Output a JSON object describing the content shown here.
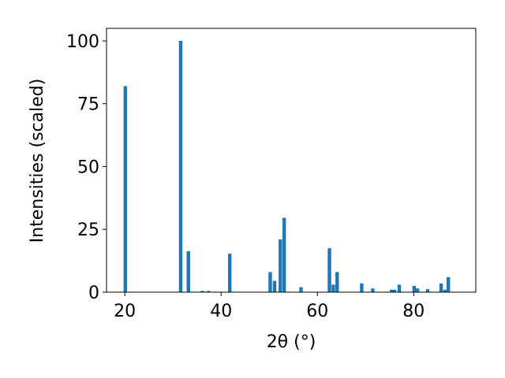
{
  "chart_data": {
    "type": "bar",
    "xlabel": "2θ (°)",
    "ylabel": "Intensities (scaled)",
    "x": [
      20.1,
      31.6,
      33.2,
      36.1,
      37.4,
      41.8,
      50.2,
      51.1,
      52.3,
      53.1,
      56.6,
      62.5,
      63.3,
      64.1,
      69.2,
      71.5,
      75.4,
      76.0,
      77.0,
      80.1,
      80.8,
      82.9,
      85.7,
      86.5,
      87.2
    ],
    "values": [
      82,
      100,
      16.3,
      0.5,
      0.5,
      15.3,
      8,
      4.5,
      21,
      29.6,
      2,
      17.5,
      3,
      8,
      3.5,
      1.5,
      1,
      1,
      3,
      2.5,
      1.5,
      1.2,
      3.5,
      1,
      6
    ],
    "color": "#1f77b4",
    "xlim": [
      16.2,
      92.9
    ],
    "xticks": [
      20,
      40,
      60,
      80
    ],
    "ylim": [
      0,
      105
    ],
    "yticks": [
      0,
      25,
      50,
      75,
      100
    ],
    "grid": false
  }
}
